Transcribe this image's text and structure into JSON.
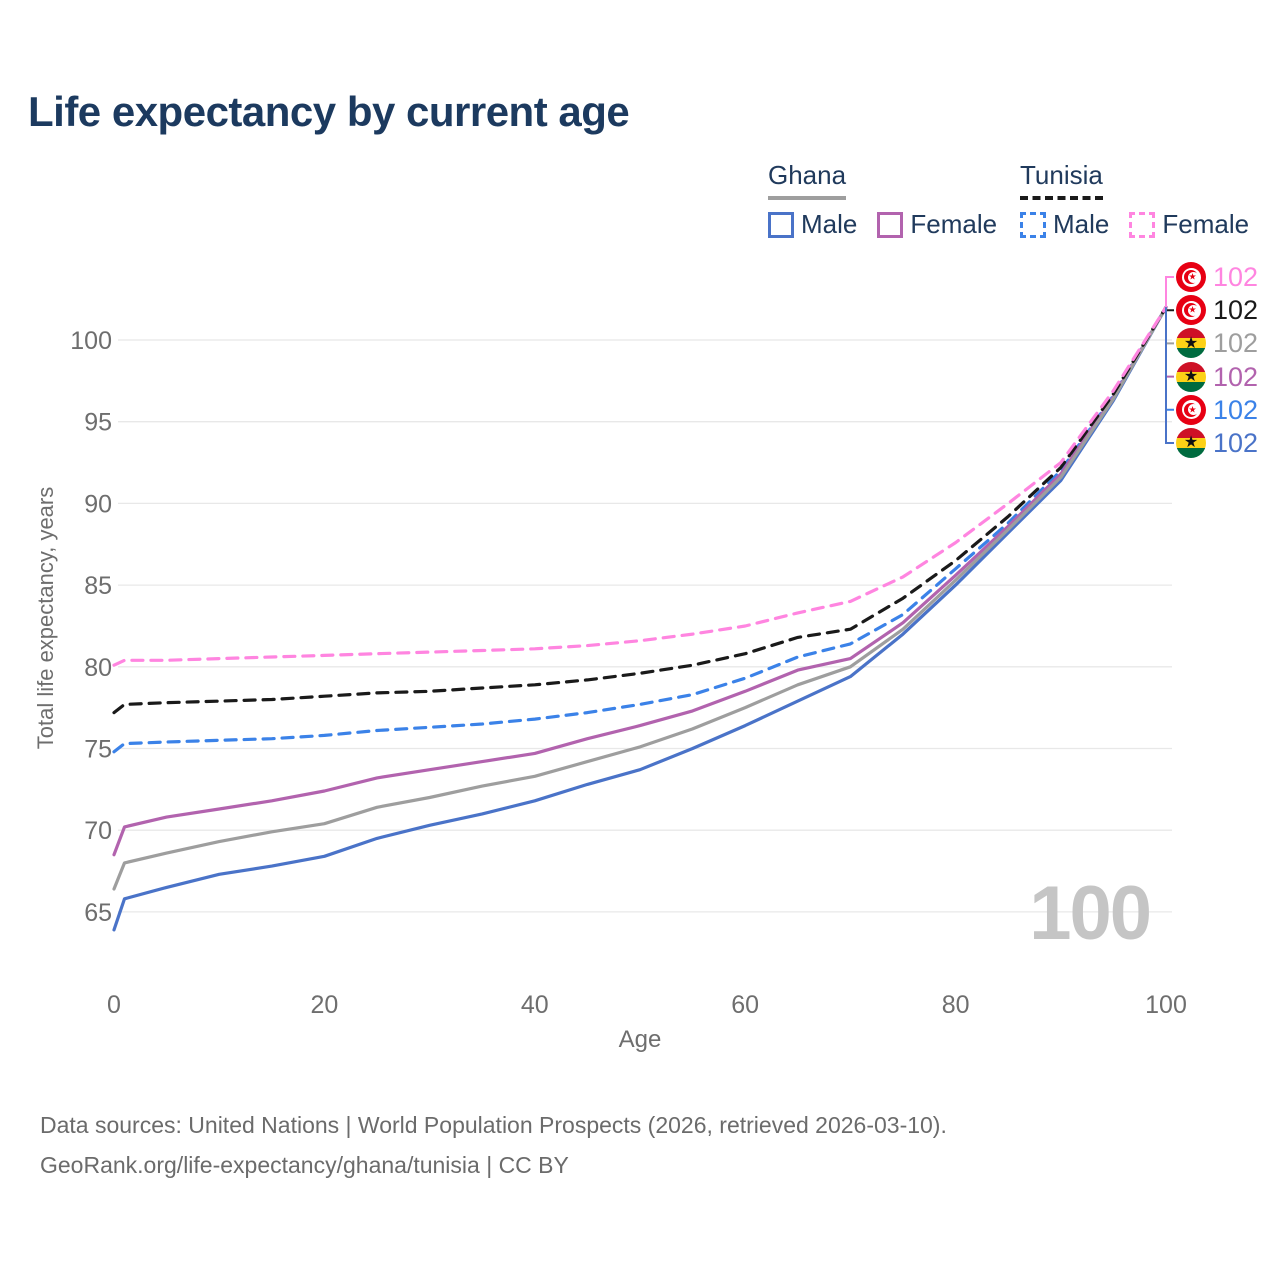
{
  "title": "Life expectancy by current age",
  "legend": {
    "groups": [
      {
        "name": "Ghana",
        "line_style": "solid",
        "line_color": "#9e9e9e",
        "items": [
          {
            "label": "Male",
            "color": "#4a73c8",
            "dashed": false
          },
          {
            "label": "Female",
            "color": "#b263ae",
            "dashed": false
          }
        ]
      },
      {
        "name": "Tunisia",
        "line_style": "dashed",
        "line_color": "#1a1a1a",
        "items": [
          {
            "label": "Male",
            "color": "#3b82e8",
            "dashed": true
          },
          {
            "label": "Female",
            "color": "#ff85e0",
            "dashed": true
          }
        ]
      }
    ]
  },
  "chart_data": {
    "type": "line",
    "title": "Life expectancy by current age",
    "xlabel": "Age",
    "ylabel": "Total life expectancy, years",
    "x_ticks": [
      0,
      20,
      40,
      60,
      80,
      100
    ],
    "y_ticks": [
      65,
      70,
      75,
      80,
      85,
      90,
      95,
      100
    ],
    "xlim": [
      0,
      100
    ],
    "ylim": [
      63,
      103
    ],
    "grid": "horizontal",
    "legend_position": "top-right",
    "ages": [
      0,
      1,
      5,
      10,
      15,
      20,
      25,
      30,
      35,
      40,
      45,
      50,
      55,
      60,
      65,
      70,
      75,
      80,
      85,
      90,
      95,
      100
    ],
    "series": [
      {
        "name": "Tunisia Female",
        "country": "Tunisia",
        "sex": "Female",
        "color": "#ff85e0",
        "dashed": true,
        "flag": "tunisia",
        "end_label": "102",
        "values": [
          80.1,
          80.4,
          80.4,
          80.5,
          80.6,
          80.7,
          80.8,
          80.9,
          81.0,
          81.1,
          81.3,
          81.6,
          82.0,
          82.5,
          83.3,
          84.0,
          85.5,
          87.6,
          90.0,
          92.5,
          96.9,
          102
        ]
      },
      {
        "name": "Tunisia Both sexes",
        "country": "Tunisia",
        "sex": "Both",
        "color": "#1a1a1a",
        "dashed": true,
        "flag": "tunisia",
        "end_label": "102",
        "values": [
          77.2,
          77.7,
          77.8,
          77.9,
          78.0,
          78.2,
          78.4,
          78.5,
          78.7,
          78.9,
          79.2,
          79.6,
          80.1,
          80.8,
          81.8,
          82.3,
          84.2,
          86.5,
          89.2,
          92.2,
          96.7,
          102
        ]
      },
      {
        "name": "Ghana Both sexes",
        "country": "Ghana",
        "sex": "Both",
        "color": "#9e9e9e",
        "dashed": false,
        "flag": "ghana",
        "end_label": "102",
        "values": [
          66.4,
          68.0,
          68.6,
          69.3,
          69.9,
          70.4,
          71.4,
          72.0,
          72.7,
          73.3,
          74.2,
          75.1,
          76.2,
          77.5,
          78.9,
          80.0,
          82.3,
          85.3,
          88.4,
          91.6,
          96.4,
          102
        ]
      },
      {
        "name": "Ghana Female",
        "country": "Ghana",
        "sex": "Female",
        "color": "#b263ae",
        "dashed": false,
        "flag": "ghana",
        "end_label": "102",
        "values": [
          68.5,
          70.2,
          70.8,
          71.3,
          71.8,
          72.4,
          73.2,
          73.7,
          74.2,
          74.7,
          75.6,
          76.4,
          77.3,
          78.5,
          79.8,
          80.5,
          82.7,
          85.6,
          88.6,
          91.8,
          96.5,
          102
        ]
      },
      {
        "name": "Tunisia Male",
        "country": "Tunisia",
        "sex": "Male",
        "color": "#3b82e8",
        "dashed": true,
        "flag": "tunisia",
        "end_label": "102",
        "values": [
          74.8,
          75.3,
          75.4,
          75.5,
          75.6,
          75.8,
          76.1,
          76.3,
          76.5,
          76.8,
          77.2,
          77.7,
          78.3,
          79.3,
          80.6,
          81.4,
          83.2,
          86.0,
          88.8,
          92.0,
          96.6,
          102
        ]
      },
      {
        "name": "Ghana Male",
        "country": "Ghana",
        "sex": "Male",
        "color": "#4a73c8",
        "dashed": false,
        "flag": "ghana",
        "end_label": "102",
        "values": [
          63.9,
          65.8,
          66.5,
          67.3,
          67.8,
          68.4,
          69.5,
          70.3,
          71.0,
          71.8,
          72.8,
          73.7,
          75.0,
          76.4,
          77.9,
          79.4,
          82.0,
          85.0,
          88.2,
          91.4,
          96.3,
          102
        ]
      }
    ]
  },
  "watermark": "100",
  "footer": {
    "line1": "Data sources: United Nations | World Population Prospects (2026, retrieved 2026-03-10).",
    "line2": "GeoRank.org/life-expectancy/ghana/tunisia | CC BY"
  }
}
